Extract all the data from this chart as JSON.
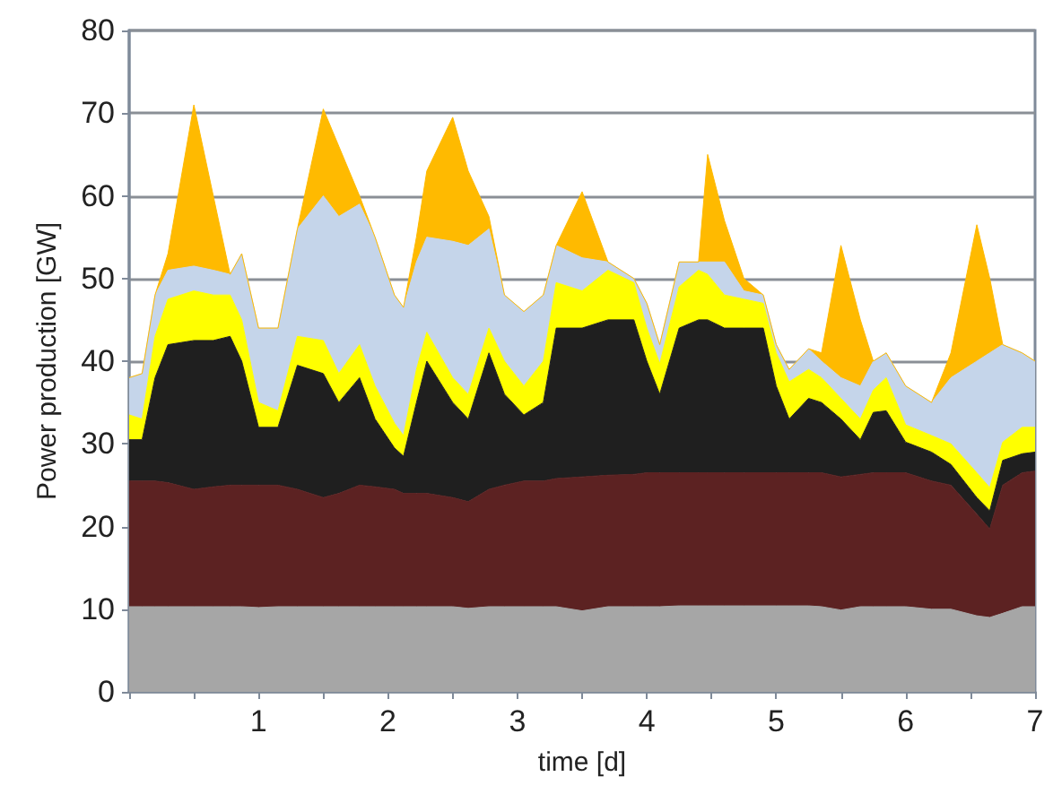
{
  "chart_data": {
    "type": "area",
    "stacked": true,
    "xlabel": "time [d]",
    "ylabel": "Power production [GW]",
    "xlim": [
      0,
      7
    ],
    "ylim": [
      0,
      80
    ],
    "xticks": [
      {
        "value": 0,
        "label": null
      },
      {
        "value": 0.5,
        "label": null
      },
      1,
      {
        "value": 1.5,
        "label": null
      },
      2,
      {
        "value": 2.5,
        "label": null
      },
      3,
      {
        "value": 3.5,
        "label": null
      },
      4,
      {
        "value": 4.5,
        "label": null
      },
      5,
      {
        "value": 5.5,
        "label": null
      },
      6,
      {
        "value": 6.5,
        "label": null
      },
      7
    ],
    "yticks": [
      0,
      10,
      20,
      30,
      40,
      50,
      60,
      70,
      80
    ],
    "grid": "y",
    "x": [
      0,
      0.1,
      0.2,
      0.3,
      0.5,
      0.65,
      0.78,
      0.87,
      1.0,
      1.15,
      1.3,
      1.5,
      1.62,
      1.78,
      1.9,
      2.05,
      2.12,
      2.22,
      2.3,
      2.5,
      2.62,
      2.78,
      2.9,
      3.05,
      3.2,
      3.3,
      3.5,
      3.7,
      3.9,
      4.0,
      4.1,
      4.25,
      4.4,
      4.47,
      4.6,
      4.75,
      4.9,
      5.0,
      5.1,
      5.25,
      5.35,
      5.5,
      5.65,
      5.75,
      5.85,
      6.0,
      6.2,
      6.35,
      6.55,
      6.65,
      6.75,
      6.9,
      7.0
    ],
    "series": [
      {
        "color": "#a6a6a6",
        "values": [
          10.3,
          10.3,
          10.3,
          10.3,
          10.3,
          10.3,
          10.3,
          10.3,
          10.2,
          10.3,
          10.3,
          10.3,
          10.3,
          10.3,
          10.3,
          10.3,
          10.3,
          10.3,
          10.3,
          10.3,
          10.1,
          10.3,
          10.3,
          10.3,
          10.3,
          10.3,
          9.8,
          10.3,
          10.3,
          10.3,
          10.3,
          10.4,
          10.4,
          10.4,
          10.4,
          10.4,
          10.4,
          10.4,
          10.4,
          10.4,
          10.3,
          9.9,
          10.3,
          10.3,
          10.3,
          10.3,
          10.0,
          10.0,
          9.2,
          9.0,
          9.5,
          10.3,
          10.3
        ]
      },
      {
        "color": "#5c2222",
        "values": [
          15.2,
          15.2,
          15.2,
          15,
          14.2,
          14.5,
          14.7,
          14.7,
          14.8,
          14.7,
          14.2,
          13.2,
          13.7,
          14.7,
          14.5,
          14.2,
          13.7,
          13.7,
          13.7,
          13.2,
          12.9,
          14.2,
          14.7,
          15.2,
          15.2,
          15.5,
          16.2,
          15.9,
          16,
          16.2,
          16.2,
          16.1,
          16.1,
          16.1,
          16.1,
          16.1,
          16.1,
          16.1,
          16.1,
          16.1,
          16.2,
          16.1,
          16,
          16.2,
          16.2,
          16.2,
          15.5,
          15,
          12.3,
          10.7,
          15.5,
          16.2,
          16.4
        ]
      },
      {
        "color": "#1f1f1f",
        "values": [
          5,
          5,
          12.5,
          16.7,
          18,
          17.7,
          18,
          15,
          7,
          7,
          15,
          15,
          11,
          13,
          8.2,
          5,
          4.5,
          11,
          16,
          11.5,
          10,
          16.5,
          11,
          8,
          9.5,
          18.2,
          18,
          18.8,
          18.7,
          13.5,
          9.5,
          17.5,
          18.5,
          18.5,
          17.5,
          17.5,
          17.5,
          10.5,
          6.5,
          9,
          8.5,
          7,
          4.2,
          7.3,
          7.5,
          3.7,
          3.5,
          2.5,
          2,
          2.2,
          3,
          2.3,
          2.3
        ]
      },
      {
        "color": "#ffff00",
        "values": [
          3,
          2.5,
          5,
          5.5,
          6,
          5.5,
          5,
          5,
          3,
          2,
          3.5,
          4,
          3.5,
          4,
          4,
          3,
          2.5,
          4,
          3.5,
          3,
          3,
          3,
          4,
          3.5,
          5,
          5.5,
          4.5,
          6,
          4.5,
          4,
          3.7,
          5,
          6,
          5.5,
          4,
          3.5,
          3,
          4,
          4.5,
          3.5,
          3,
          2.5,
          2.5,
          2.7,
          4,
          2.1,
          2,
          2.5,
          3,
          2.8,
          2.2,
          3.2,
          3
        ]
      },
      {
        "color": "#c5d5ea",
        "values": [
          4.5,
          5.5,
          5,
          3.5,
          3,
          3,
          2.5,
          8,
          9,
          10,
          13,
          17.5,
          19,
          17,
          18,
          15.5,
          15.5,
          13,
          11.5,
          16.5,
          18,
          12,
          8,
          9,
          8,
          4.5,
          4,
          1,
          0.5,
          3,
          2.3,
          3,
          1,
          1.5,
          4,
          1,
          1,
          1,
          1.5,
          2.5,
          2,
          2.5,
          4,
          3.5,
          3,
          4.7,
          4,
          8,
          13.5,
          16.3,
          11.8,
          9,
          8
        ]
      },
      {
        "color": "#ffba00",
        "values": [
          0,
          0,
          0,
          2,
          19.5,
          9,
          0,
          0,
          0,
          0,
          0,
          10.5,
          8.5,
          1,
          0,
          0,
          0,
          3,
          8,
          15,
          9,
          1.5,
          0,
          0,
          0,
          0,
          8,
          0,
          0,
          0,
          0,
          0,
          0,
          13,
          5,
          1.5,
          0,
          0,
          0,
          0,
          1,
          16,
          8,
          0,
          0,
          0,
          0,
          3,
          16.5,
          9,
          0,
          0,
          0
        ]
      }
    ]
  }
}
